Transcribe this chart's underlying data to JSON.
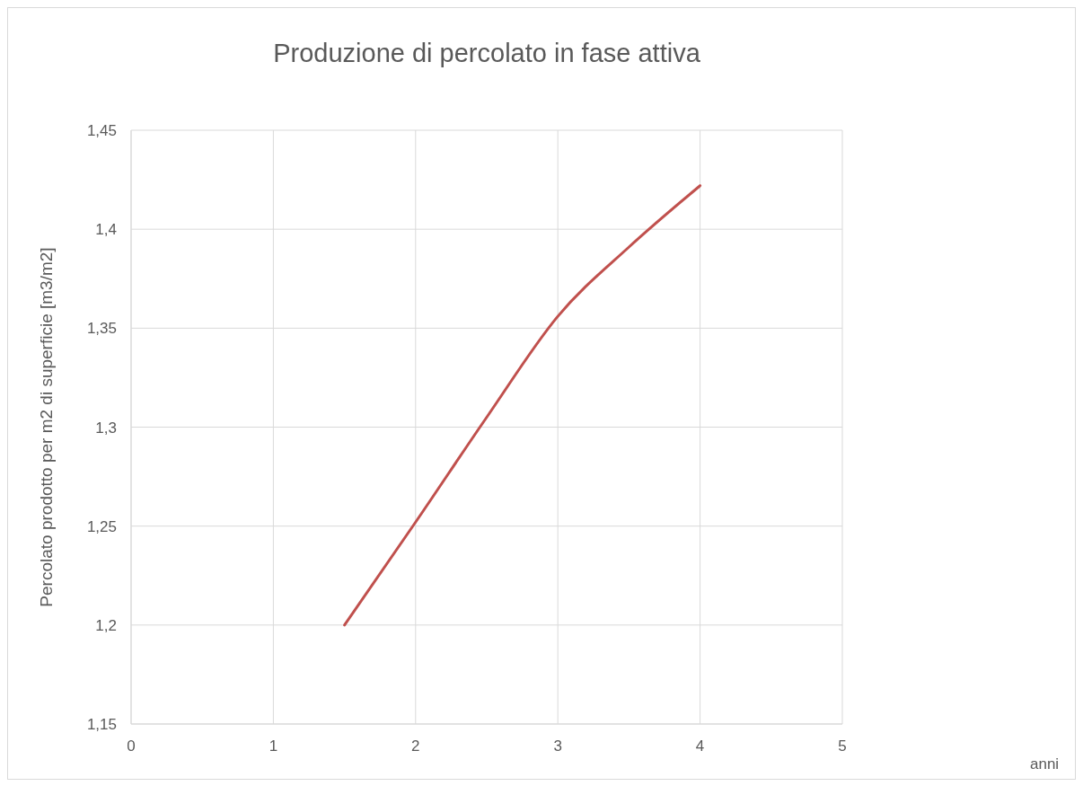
{
  "chart_data": {
    "type": "line",
    "title": "Produzione di percolato in fase attiva",
    "annotations": [
      "anni"
    ],
    "ylabel": "Percolato prodotto per m2 di superficie [m3/m2]",
    "x": [
      1.5,
      2,
      2.5,
      3,
      3.5,
      4
    ],
    "series": [
      {
        "color": "#c0504d",
        "values": [
          1.2,
          1.252,
          1.305,
          1.356,
          1.391,
          1.422
        ]
      }
    ],
    "xlim": [
      0,
      5
    ],
    "xticks": [
      0,
      1,
      2,
      3,
      4,
      5
    ],
    "ylim": [
      1.15,
      1.45
    ],
    "yticks": [
      {
        "value": 1.15,
        "label": "1,15"
      },
      {
        "value": 1.2,
        "label": "1,2"
      },
      {
        "value": 1.25,
        "label": "1,25"
      },
      {
        "value": 1.3,
        "label": "1,3"
      },
      {
        "value": 1.35,
        "label": "1,35"
      },
      {
        "value": 1.4,
        "label": "1,4"
      },
      {
        "value": 1.45,
        "label": "1,45"
      }
    ],
    "grid": true,
    "marker": "none",
    "line_style": "solid"
  }
}
